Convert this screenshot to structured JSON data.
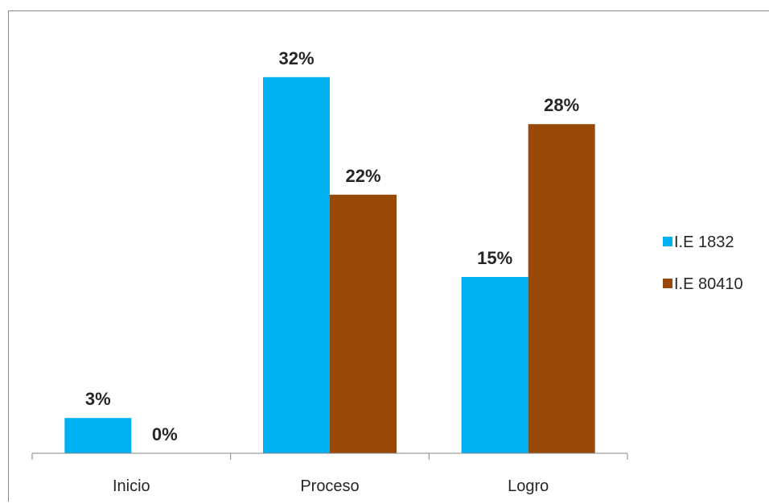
{
  "chart_data": {
    "type": "bar",
    "categories": [
      "Inicio",
      "Proceso",
      "Logro"
    ],
    "series": [
      {
        "name": "I.E 1832",
        "values": [
          3,
          32,
          15
        ],
        "labels": [
          "3%",
          "32%",
          "15%"
        ],
        "color": "#00B0F0"
      },
      {
        "name": "I.E 80410",
        "values": [
          0,
          22,
          28
        ],
        "labels": [
          "0%",
          "22%",
          "28%"
        ],
        "color": "#984807"
      }
    ],
    "title": "",
    "xlabel": "",
    "ylabel": "",
    "ylim": [
      0,
      35
    ],
    "grid": false,
    "legend_position": "right"
  }
}
